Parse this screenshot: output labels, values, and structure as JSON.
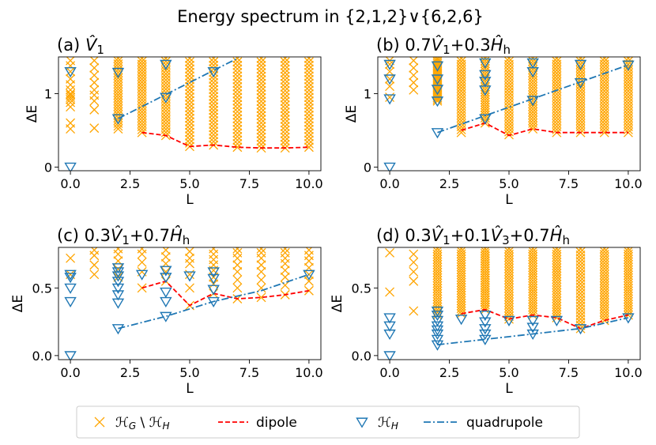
{
  "figure": {
    "title": "Energy spectrum in {2,1,2}∨{6,2,6}",
    "legend": {
      "placement": "bottom-center",
      "entries": [
        {
          "label": "𝓗_G \\ 𝓗_H",
          "marker": "x",
          "color": "#FFA500"
        },
        {
          "label": "dipole",
          "marker": "dashed-line",
          "color": "#FF0000"
        },
        {
          "label": "𝓗_H",
          "marker": "triangle-down-open",
          "color": "#1F77B4"
        },
        {
          "label": "quadrupole",
          "marker": "dashdot-line",
          "color": "#1F77B4"
        }
      ]
    }
  },
  "colors": {
    "orange": "#FFA500",
    "dipole": "#FF0000",
    "blue": "#1F77B4"
  },
  "chart_data": [
    {
      "type": "scatter",
      "title": "(a) V̂1",
      "xlabel": "L",
      "ylabel": "ΔE",
      "xlim": [
        -0.5,
        10.5
      ],
      "ylim": [
        -0.05,
        1.5
      ],
      "xticks": [
        0.0,
        2.5,
        5.0,
        7.5,
        10.0
      ],
      "xtick_labels": [
        "0.0",
        "2.5",
        "5.0",
        "7.5",
        "10.0"
      ],
      "yticks": [
        0,
        1
      ],
      "ytick_labels": [
        "0",
        "1"
      ],
      "orange_columns": [
        {
          "x": 0,
          "values": [
            0.52,
            0.6,
            0.82,
            0.88,
            0.92,
            0.95,
            0.98,
            1.0,
            1.05,
            1.12,
            1.2,
            1.3,
            1.38,
            1.45
          ]
        },
        {
          "x": 1,
          "values": [
            0.53,
            0.78,
            0.9,
            0.98,
            1.05,
            1.15,
            1.25,
            1.35,
            1.45
          ]
        },
        {
          "x": 2,
          "min": 0.52,
          "max": 1.48
        },
        {
          "x": 3,
          "min": 0.47,
          "max": 1.48
        },
        {
          "x": 4,
          "min": 0.43,
          "max": 1.48
        },
        {
          "x": 5,
          "min": 0.28,
          "max": 1.48
        },
        {
          "x": 6,
          "min": 0.3,
          "max": 1.48
        },
        {
          "x": 7,
          "min": 0.27,
          "max": 1.48
        },
        {
          "x": 8,
          "min": 0.26,
          "max": 1.48
        },
        {
          "x": 9,
          "min": 0.26,
          "max": 1.48
        },
        {
          "x": 10,
          "min": 0.27,
          "max": 1.48
        }
      ],
      "hh": [
        {
          "x": 0,
          "y": 0.0
        },
        {
          "x": 0,
          "y": 1.3
        },
        {
          "x": 2,
          "y": 0.66
        },
        {
          "x": 2,
          "y": 1.29
        },
        {
          "x": 4,
          "y": 0.95
        },
        {
          "x": 4,
          "y": 1.4
        },
        {
          "x": 6,
          "y": 1.3
        }
      ],
      "dipole": {
        "x": [
          3,
          4,
          5,
          6,
          7,
          8,
          9,
          10
        ],
        "y": [
          0.47,
          0.43,
          0.28,
          0.3,
          0.27,
          0.26,
          0.26,
          0.27
        ]
      },
      "quadrupole": {
        "x": [
          2,
          7
        ],
        "y": [
          0.66,
          1.48
        ]
      }
    },
    {
      "type": "scatter",
      "title": "(b) 0.7V̂1+0.3Ĥh",
      "xlabel": "L",
      "ylabel": "ΔE",
      "xlim": [
        -0.5,
        10.5
      ],
      "ylim": [
        -0.05,
        1.5
      ],
      "xticks": [
        0.0,
        2.5,
        5.0,
        7.5,
        10.0
      ],
      "xtick_labels": [
        "0.0",
        "2.5",
        "5.0",
        "7.5",
        "10.0"
      ],
      "yticks": [
        0,
        1
      ],
      "ytick_labels": [
        "0",
        "1"
      ],
      "orange_columns": [
        {
          "x": 0,
          "values": [
            0.95,
            1.1,
            1.2,
            1.3,
            1.4,
            1.45
          ]
        },
        {
          "x": 1,
          "values": [
            1.05,
            1.15,
            1.25,
            1.35,
            1.45
          ]
        },
        {
          "x": 2,
          "min": 0.9,
          "max": 1.48
        },
        {
          "x": 3,
          "min": 0.47,
          "max": 1.48
        },
        {
          "x": 4,
          "min": 0.6,
          "max": 1.48
        },
        {
          "x": 5,
          "min": 0.44,
          "max": 1.48
        },
        {
          "x": 6,
          "min": 0.52,
          "max": 1.48
        },
        {
          "x": 7,
          "min": 0.47,
          "max": 1.48
        },
        {
          "x": 8,
          "min": 0.47,
          "max": 1.48
        },
        {
          "x": 9,
          "min": 0.47,
          "max": 1.48
        },
        {
          "x": 10,
          "min": 0.47,
          "max": 1.48
        }
      ],
      "hh": [
        {
          "x": 0,
          "y": 0.0
        },
        {
          "x": 0,
          "y": 0.93
        },
        {
          "x": 0,
          "y": 1.2
        },
        {
          "x": 0,
          "y": 1.4
        },
        {
          "x": 2,
          "y": 0.47
        },
        {
          "x": 2,
          "y": 0.9
        },
        {
          "x": 2,
          "y": 1.06
        },
        {
          "x": 2,
          "y": 1.2
        },
        {
          "x": 2,
          "y": 1.38
        },
        {
          "x": 4,
          "y": 0.66
        },
        {
          "x": 4,
          "y": 1.05
        },
        {
          "x": 4,
          "y": 1.17
        },
        {
          "x": 4,
          "y": 1.26
        },
        {
          "x": 4,
          "y": 1.42
        },
        {
          "x": 6,
          "y": 0.91
        },
        {
          "x": 6,
          "y": 1.3
        },
        {
          "x": 6,
          "y": 1.42
        },
        {
          "x": 8,
          "y": 1.15
        },
        {
          "x": 8,
          "y": 1.4
        },
        {
          "x": 10,
          "y": 1.39
        }
      ],
      "dipole": {
        "x": [
          3,
          4,
          5,
          6,
          7,
          8,
          9,
          10
        ],
        "y": [
          0.5,
          0.6,
          0.43,
          0.52,
          0.47,
          0.47,
          0.47,
          0.47
        ]
      },
      "quadrupole": {
        "x": [
          2,
          10
        ],
        "y": [
          0.47,
          1.39
        ]
      }
    },
    {
      "type": "scatter",
      "title": "(c) 0.3V̂1+0.7Ĥh",
      "xlabel": "L",
      "ylabel": "ΔE",
      "xlim": [
        -0.5,
        10.5
      ],
      "ylim": [
        -0.03,
        0.8
      ],
      "xticks": [
        0.0,
        2.5,
        5.0,
        7.5,
        10.0
      ],
      "xtick_labels": [
        "0.0",
        "2.5",
        "5.0",
        "7.5",
        "10.0"
      ],
      "yticks": [
        0.0,
        0.5
      ],
      "ytick_labels": [
        "0.0",
        "0.5"
      ],
      "orange_columns": [
        {
          "x": 0,
          "values": [
            0.6,
            0.72
          ]
        },
        {
          "x": 1,
          "values": [
            0.6,
            0.67,
            0.74,
            0.78
          ]
        },
        {
          "x": 2,
          "values": [
            0.58,
            0.64,
            0.7,
            0.75,
            0.79
          ]
        },
        {
          "x": 3,
          "values": [
            0.5,
            0.62,
            0.69,
            0.75,
            0.79
          ]
        },
        {
          "x": 4,
          "values": [
            0.55,
            0.62,
            0.68,
            0.73,
            0.78
          ]
        },
        {
          "x": 5,
          "values": [
            0.37,
            0.5,
            0.6,
            0.68,
            0.72,
            0.77
          ]
        },
        {
          "x": 6,
          "values": [
            0.46,
            0.53,
            0.58,
            0.63,
            0.67,
            0.71,
            0.75,
            0.79
          ]
        },
        {
          "x": 7,
          "values": [
            0.42,
            0.5,
            0.56,
            0.62,
            0.67,
            0.72,
            0.76,
            0.79
          ]
        },
        {
          "x": 8,
          "values": [
            0.43,
            0.5,
            0.56,
            0.62,
            0.67,
            0.72,
            0.76,
            0.79
          ]
        },
        {
          "x": 9,
          "values": [
            0.45,
            0.52,
            0.58,
            0.63,
            0.68,
            0.72,
            0.76,
            0.79
          ]
        },
        {
          "x": 10,
          "values": [
            0.48,
            0.55,
            0.6,
            0.65,
            0.7,
            0.74,
            0.78
          ]
        }
      ],
      "hh": [
        {
          "x": 0,
          "y": 0.0
        },
        {
          "x": 0,
          "y": 0.4
        },
        {
          "x": 0,
          "y": 0.5
        },
        {
          "x": 0,
          "y": 0.58
        },
        {
          "x": 0,
          "y": 0.6
        },
        {
          "x": 2,
          "y": 0.2
        },
        {
          "x": 2,
          "y": 0.39
        },
        {
          "x": 2,
          "y": 0.45
        },
        {
          "x": 2,
          "y": 0.5
        },
        {
          "x": 2,
          "y": 0.55
        },
        {
          "x": 2,
          "y": 0.59
        },
        {
          "x": 2,
          "y": 0.62
        },
        {
          "x": 2,
          "y": 0.65
        },
        {
          "x": 3,
          "y": 0.6
        },
        {
          "x": 4,
          "y": 0.29
        },
        {
          "x": 4,
          "y": 0.4
        },
        {
          "x": 4,
          "y": 0.47
        },
        {
          "x": 4,
          "y": 0.58
        },
        {
          "x": 4,
          "y": 0.63
        },
        {
          "x": 5,
          "y": 0.59
        },
        {
          "x": 6,
          "y": 0.4
        },
        {
          "x": 6,
          "y": 0.49
        },
        {
          "x": 6,
          "y": 0.57
        },
        {
          "x": 6,
          "y": 0.62
        },
        {
          "x": 10,
          "y": 0.6
        }
      ],
      "dipole": {
        "x": [
          3,
          4,
          5,
          6,
          7,
          8,
          9,
          10
        ],
        "y": [
          0.5,
          0.55,
          0.37,
          0.46,
          0.42,
          0.43,
          0.45,
          0.48
        ]
      },
      "quadrupole": {
        "x": [
          2,
          4,
          6,
          8,
          10
        ],
        "y": [
          0.2,
          0.29,
          0.4,
          0.48,
          0.6
        ]
      }
    },
    {
      "type": "scatter",
      "title": "(d) 0.3V̂1+0.1V̂3+0.7Ĥh",
      "xlabel": "L",
      "ylabel": "ΔE",
      "xlim": [
        -0.5,
        10.5
      ],
      "ylim": [
        -0.03,
        0.8
      ],
      "xticks": [
        0.0,
        2.5,
        5.0,
        7.5,
        10.0
      ],
      "xtick_labels": [
        "0.0",
        "2.5",
        "5.0",
        "7.5",
        "10.0"
      ],
      "yticks": [
        0.0,
        0.5
      ],
      "ytick_labels": [
        "0.0",
        "0.5"
      ],
      "orange_columns": [
        {
          "x": 0,
          "values": [
            0.47,
            0.76
          ]
        },
        {
          "x": 1,
          "values": [
            0.33,
            0.55,
            0.62,
            0.69,
            0.75
          ]
        },
        {
          "x": 2,
          "min": 0.3,
          "max": 0.79
        },
        {
          "x": 3,
          "min": 0.31,
          "max": 0.79
        },
        {
          "x": 4,
          "min": 0.34,
          "max": 0.79
        },
        {
          "x": 5,
          "min": 0.27,
          "max": 0.79
        },
        {
          "x": 6,
          "min": 0.3,
          "max": 0.79
        },
        {
          "x": 7,
          "min": 0.28,
          "max": 0.79
        },
        {
          "x": 8,
          "min": 0.2,
          "max": 0.79
        },
        {
          "x": 9,
          "min": 0.26,
          "max": 0.79
        },
        {
          "x": 10,
          "min": 0.3,
          "max": 0.79
        }
      ],
      "hh": [
        {
          "x": 0,
          "y": 0.0
        },
        {
          "x": 0,
          "y": 0.16
        },
        {
          "x": 0,
          "y": 0.22
        },
        {
          "x": 0,
          "y": 0.28
        },
        {
          "x": 2,
          "y": 0.08
        },
        {
          "x": 2,
          "y": 0.12
        },
        {
          "x": 2,
          "y": 0.16
        },
        {
          "x": 2,
          "y": 0.19
        },
        {
          "x": 2,
          "y": 0.22
        },
        {
          "x": 2,
          "y": 0.26
        },
        {
          "x": 2,
          "y": 0.3
        },
        {
          "x": 2,
          "y": 0.33
        },
        {
          "x": 3,
          "y": 0.27
        },
        {
          "x": 4,
          "y": 0.12
        },
        {
          "x": 4,
          "y": 0.16
        },
        {
          "x": 4,
          "y": 0.2
        },
        {
          "x": 4,
          "y": 0.25
        },
        {
          "x": 4,
          "y": 0.3
        },
        {
          "x": 5,
          "y": 0.26
        },
        {
          "x": 6,
          "y": 0.16
        },
        {
          "x": 6,
          "y": 0.21
        },
        {
          "x": 6,
          "y": 0.26
        },
        {
          "x": 7,
          "y": 0.26
        },
        {
          "x": 8,
          "y": 0.2
        },
        {
          "x": 10,
          "y": 0.28
        }
      ],
      "dipole": {
        "x": [
          3,
          4,
          5,
          6,
          7,
          8,
          9,
          10
        ],
        "y": [
          0.31,
          0.34,
          0.27,
          0.3,
          0.28,
          0.2,
          0.26,
          0.3
        ]
      },
      "quadrupole": {
        "x": [
          2,
          4,
          6,
          8,
          10
        ],
        "y": [
          0.08,
          0.12,
          0.16,
          0.2,
          0.28
        ]
      }
    }
  ]
}
